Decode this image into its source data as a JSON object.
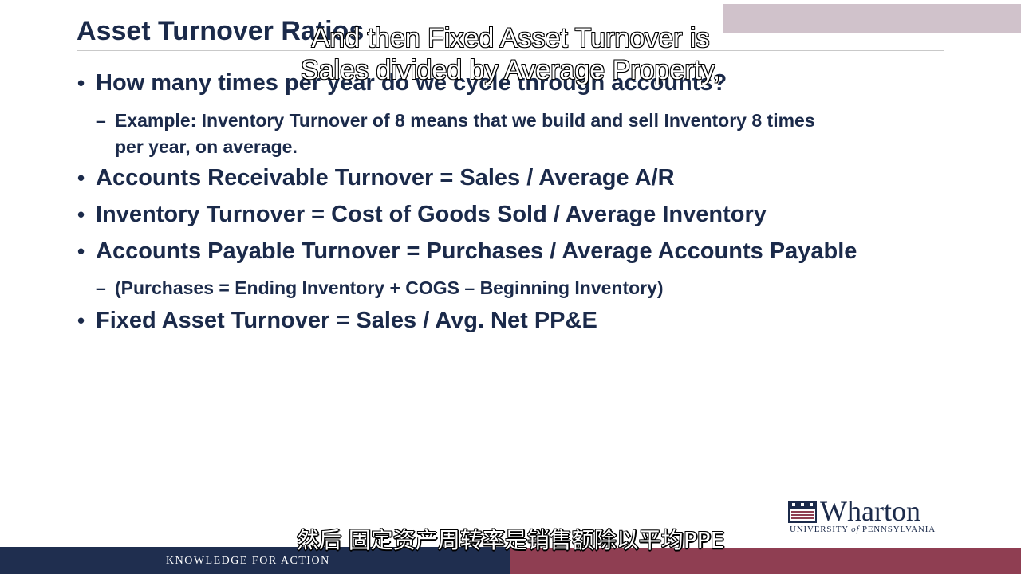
{
  "slide": {
    "title": "Asset Turnover Ratios",
    "bullets": [
      {
        "text": "How many times per year do we cycle through accounts?",
        "sub": [
          {
            "line1": "Example: Inventory Turnover of 8 means that we build and sell Inventory 8 times",
            "line2": "per year, on average."
          }
        ]
      },
      {
        "text": "Accounts Receivable Turnover = Sales / Average A/R"
      },
      {
        "text": "Inventory Turnover = Cost of Goods Sold / Average Inventory"
      },
      {
        "text": "Accounts Payable Turnover = Purchases / Average Accounts Payable",
        "sub": [
          {
            "line1": "(Purchases = Ending Inventory + COGS – Beginning Inventory)"
          }
        ]
      },
      {
        "text": "Fixed Asset Turnover = Sales / Avg. Net PP&E"
      }
    ],
    "bullet_symbol": "•",
    "dash_symbol": "–"
  },
  "captions": {
    "english_line1": "And then Fixed Asset Turnover is",
    "english_line2": "Sales divided by Average Property,",
    "chinese": "然后 固定资产周转率是销售额除以平均PPE"
  },
  "logo": {
    "name": "Wharton",
    "university_prefix": "UNIVERSITY",
    "university_of": "of",
    "university_suffix": "PENNSYLVANIA",
    "icon": "penn-shield-icon"
  },
  "footer": {
    "tagline": "KNOWLEDGE FOR ACTION"
  },
  "colors": {
    "navy": "#1b2a4a",
    "footer_navy": "#1f2e4f",
    "footer_maroon": "#8f3e52"
  }
}
